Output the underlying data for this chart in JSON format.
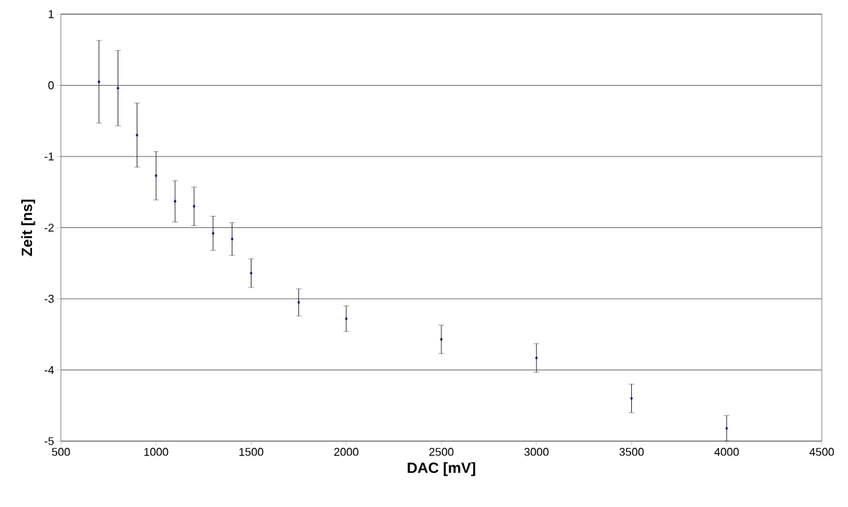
{
  "chart_data": {
    "type": "scatter",
    "xlabel": "DAC [mV]",
    "ylabel": "Zeit [ns]",
    "x": [
      700,
      800,
      900,
      1000,
      1100,
      1200,
      1300,
      1400,
      1500,
      1750,
      2000,
      2500,
      3000,
      3500,
      4000
    ],
    "values": [
      0.05,
      -0.04,
      -0.7,
      -1.27,
      -1.63,
      -1.7,
      -2.08,
      -2.16,
      -2.64,
      -3.05,
      -3.28,
      -3.57,
      -3.83,
      -4.4,
      -4.82
    ],
    "errors": [
      0.58,
      0.53,
      0.45,
      0.34,
      0.29,
      0.27,
      0.24,
      0.23,
      0.2,
      0.19,
      0.18,
      0.2,
      0.2,
      0.2,
      0.18
    ],
    "color": "#000080",
    "marker": "diamond",
    "grid": "y",
    "xlim": [
      500,
      4500
    ],
    "xticks": [
      500,
      1000,
      1500,
      2000,
      2500,
      3000,
      3500,
      4000,
      4500
    ],
    "ylim": [
      -5,
      1
    ],
    "yticks": [
      -5,
      -4,
      -3,
      -2,
      -1,
      0,
      1
    ]
  }
}
